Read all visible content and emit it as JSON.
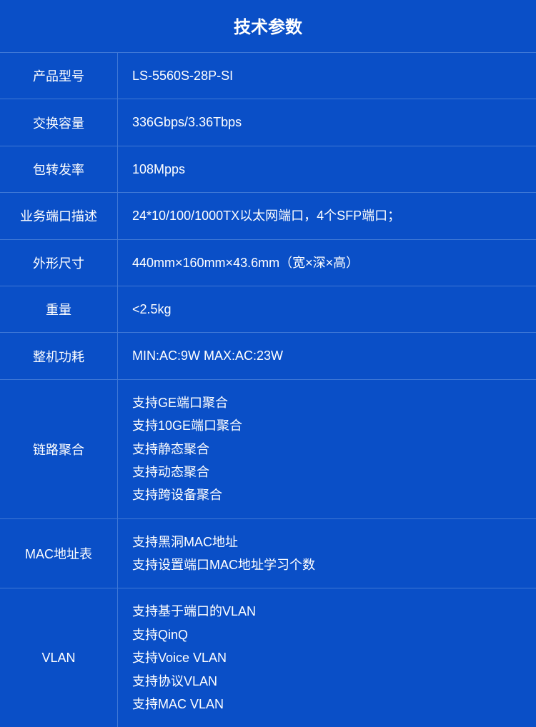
{
  "title": "技术参数",
  "colors": {
    "background": "#0a4fc7",
    "border": "#3f78d6",
    "text": "#ffffff"
  },
  "title_fontsize": 24,
  "label_fontsize": 18,
  "value_fontsize": 18,
  "label_col_width": 165,
  "rows": [
    {
      "label": "产品型号",
      "values": [
        "LS-5560S-28P-SI"
      ]
    },
    {
      "label": "交换容量",
      "values": [
        "336Gbps/3.36Tbps"
      ]
    },
    {
      "label": "包转发率",
      "values": [
        "108Mpps"
      ]
    },
    {
      "label": "业务端口描述",
      "values": [
        "24*10/100/1000TX以太网端口，4个SFP端口；"
      ]
    },
    {
      "label": "外形尺寸",
      "values": [
        "440mm×160mm×43.6mm（宽×深×高）"
      ]
    },
    {
      "label": "重量",
      "values": [
        "<2.5kg"
      ]
    },
    {
      "label": "整机功耗",
      "values": [
        "MIN:AC:9W  MAX:AC:23W"
      ]
    },
    {
      "label": "链路聚合",
      "values": [
        "支持GE端口聚合",
        "支持10GE端口聚合",
        "支持静态聚合",
        "支持动态聚合",
        "支持跨设备聚合"
      ]
    },
    {
      "label": "MAC地址表",
      "values": [
        "支持黑洞MAC地址",
        "支持设置端口MAC地址学习个数"
      ]
    },
    {
      "label": "VLAN",
      "values": [
        "支持基于端口的VLAN",
        "支持QinQ",
        "支持Voice VLAN",
        "支持协议VLAN",
        "支持MAC VLAN"
      ]
    }
  ]
}
